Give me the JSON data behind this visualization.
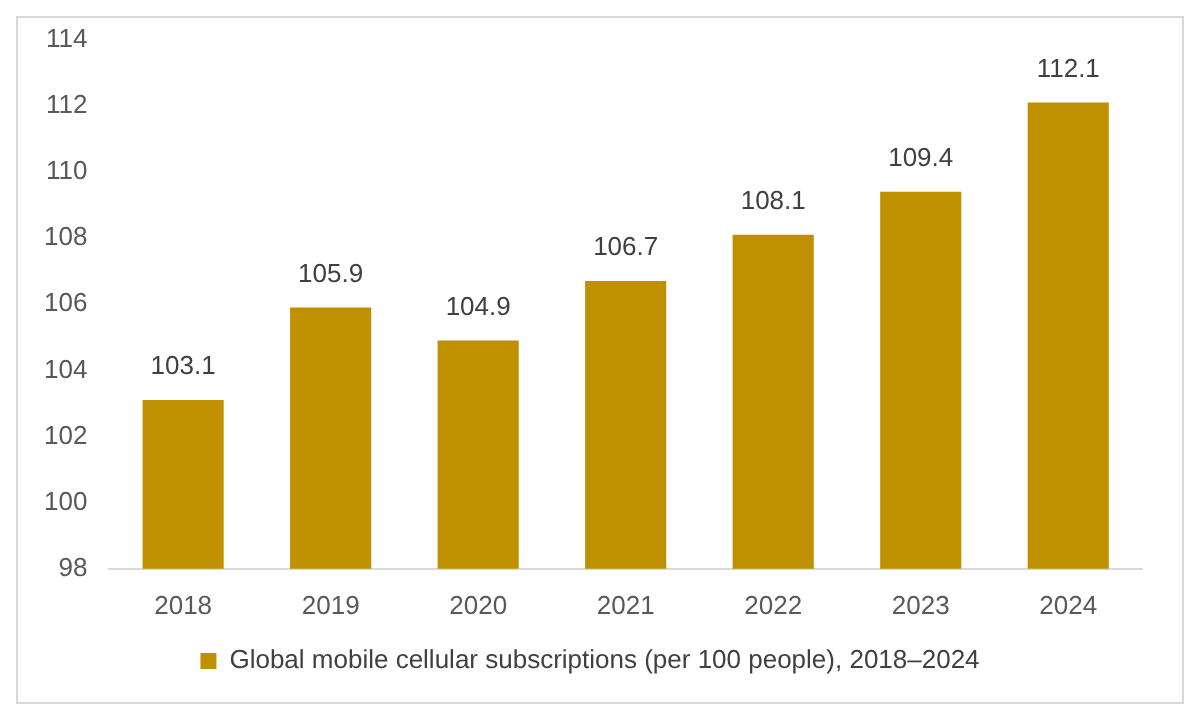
{
  "chart_data": {
    "type": "bar",
    "categories": [
      "2018",
      "2019",
      "2020",
      "2021",
      "2022",
      "2023",
      "2024"
    ],
    "series": [
      {
        "name": "Global mobile cellular subscriptions (per 100 people), 2018–2024",
        "color": "#bf9000",
        "values": [
          103.1,
          105.9,
          104.9,
          106.7,
          108.1,
          109.4,
          112.1
        ]
      }
    ],
    "ylim": [
      98,
      114
    ],
    "yticks": [
      98,
      100,
      102,
      104,
      106,
      108,
      110,
      112,
      114
    ],
    "grid": false,
    "legend": "bottom",
    "data_labels": true
  }
}
